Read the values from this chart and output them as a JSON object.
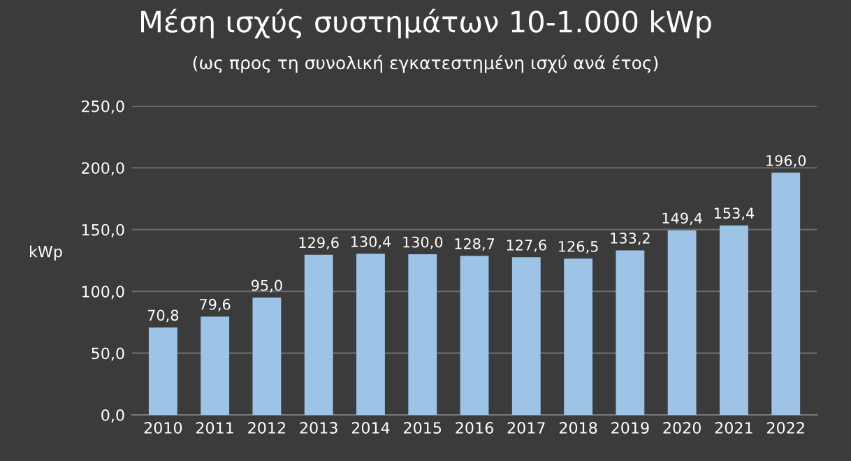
{
  "chart_data": {
    "type": "bar",
    "title": "Μέση ισχύς συστημάτων 10-1.000 kWp",
    "subtitle": "(ως προς τη συνολική εγκατεστημένη ισχύ ανά έτος)",
    "ylabel": "kWp",
    "categories": [
      "2010",
      "2011",
      "2012",
      "2013",
      "2014",
      "2015",
      "2016",
      "2017",
      "2018",
      "2019",
      "2020",
      "2021",
      "2022"
    ],
    "values": [
      70.8,
      79.6,
      95.0,
      129.6,
      130.4,
      130.0,
      128.7,
      127.6,
      126.5,
      133.2,
      149.4,
      153.4,
      196.0
    ],
    "value_labels": [
      "70,8",
      "79,6",
      "95,0",
      "129,6",
      "130,4",
      "130,0",
      "128,7",
      "127,6",
      "126,5",
      "133,2",
      "149,4",
      "153,4",
      "196,0"
    ],
    "color": "#9dc3e6",
    "ylim": [
      0,
      250
    ],
    "yticks": [
      {
        "value": 0,
        "label": "0,0"
      },
      {
        "value": 50,
        "label": "50,0"
      },
      {
        "value": 100,
        "label": "100,0"
      },
      {
        "value": 150,
        "label": "150,0"
      },
      {
        "value": 200,
        "label": "200,0"
      },
      {
        "value": 250,
        "label": "250,0"
      }
    ],
    "grid": "y"
  }
}
